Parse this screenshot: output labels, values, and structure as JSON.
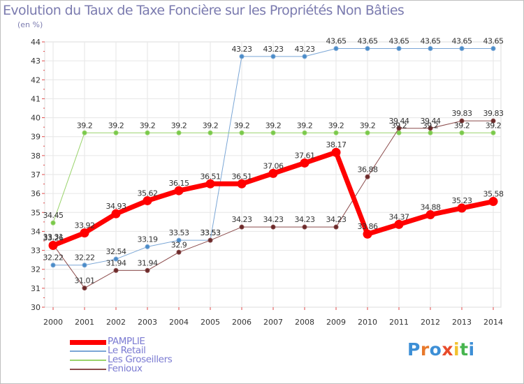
{
  "title": "Evolution du Taux de Taxe Foncière sur les Propriétés Non Bâties",
  "unit_label": "(en %)",
  "logo": {
    "text": "Proxiti",
    "letters": [
      "P",
      "r",
      "o",
      "x",
      "i",
      "t",
      "i"
    ],
    "colors": [
      "#3d8fd6",
      "#e8792b",
      "#3d8fd6",
      "#e84b2b",
      "#f2c12e",
      "#47b54f",
      "#3d8fd6"
    ]
  },
  "chart_data": {
    "type": "line",
    "title": "Evolution du Taux de Taxe Foncière sur les Propriétés Non Bâties",
    "ylabel": "(en %)",
    "xlabel": "",
    "x": [
      "2000",
      "2001",
      "2002",
      "2003",
      "2004",
      "2005",
      "2006",
      "2007",
      "2008",
      "2009",
      "2010",
      "2011",
      "2012",
      "2013",
      "2014"
    ],
    "ylim": [
      30,
      44
    ],
    "yticks": [
      "30",
      "31",
      "32",
      "33",
      "34",
      "35",
      "36",
      "37",
      "38",
      "39",
      "40",
      "41",
      "42",
      "43",
      "44"
    ],
    "grid": true,
    "legend_position": "bottom-left",
    "series": [
      {
        "name": "PAMPLIE",
        "color": "#ff0000",
        "values": [
          33.26,
          33.92,
          34.93,
          35.62,
          36.15,
          36.51,
          36.51,
          37.06,
          37.61,
          38.17,
          33.86,
          34.37,
          34.88,
          35.23,
          35.58
        ],
        "labels": [
          "33.26",
          "33.92",
          "34.93",
          "35.62",
          "36.15",
          "36.51",
          "36.51",
          "37.06",
          "37.61",
          "38.17",
          "33.86",
          "34.37",
          "34.88",
          "35.23",
          "35.58"
        ]
      },
      {
        "name": "Le Retail",
        "color": "#7aa6d6",
        "values": [
          32.22,
          32.22,
          32.54,
          33.19,
          33.53,
          33.53,
          43.23,
          43.23,
          43.23,
          43.65,
          43.65,
          43.65,
          43.65,
          43.65,
          43.65
        ],
        "labels": [
          "32.22",
          "32.22",
          "32.54",
          "33.19",
          "33.53",
          "33.53",
          "43.23",
          "43.23",
          "43.23",
          "43.65",
          "43.65",
          "43.65",
          "43.65",
          "43.65",
          "43.65"
        ]
      },
      {
        "name": "Les Groseillers",
        "color": "#99d36b",
        "values": [
          34.45,
          39.2,
          39.2,
          39.2,
          39.2,
          39.2,
          39.2,
          39.2,
          39.2,
          39.2,
          39.2,
          39.2,
          39.2,
          39.2,
          39.2
        ],
        "labels": [
          "34.45",
          "39.2",
          "39.2",
          "39.2",
          "39.2",
          "39.2",
          "39.2",
          "39.2",
          "39.2",
          "39.2",
          "39.2",
          "39.2",
          "39.2",
          "39.2",
          "39.2"
        ]
      },
      {
        "name": "Fenioux",
        "color": "#8b4b4b",
        "values": [
          33.31,
          31.01,
          31.94,
          31.94,
          32.9,
          33.53,
          34.23,
          34.23,
          34.23,
          34.23,
          36.88,
          39.44,
          39.44,
          39.83,
          39.83
        ],
        "labels": [
          "33.31",
          "31.01",
          "31.94",
          "31.94",
          "32.9",
          "33.53",
          "34.23",
          "34.23",
          "34.23",
          "34.23",
          "36.88",
          "39.44",
          "39.44",
          "39.83",
          "39.83"
        ]
      }
    ]
  }
}
